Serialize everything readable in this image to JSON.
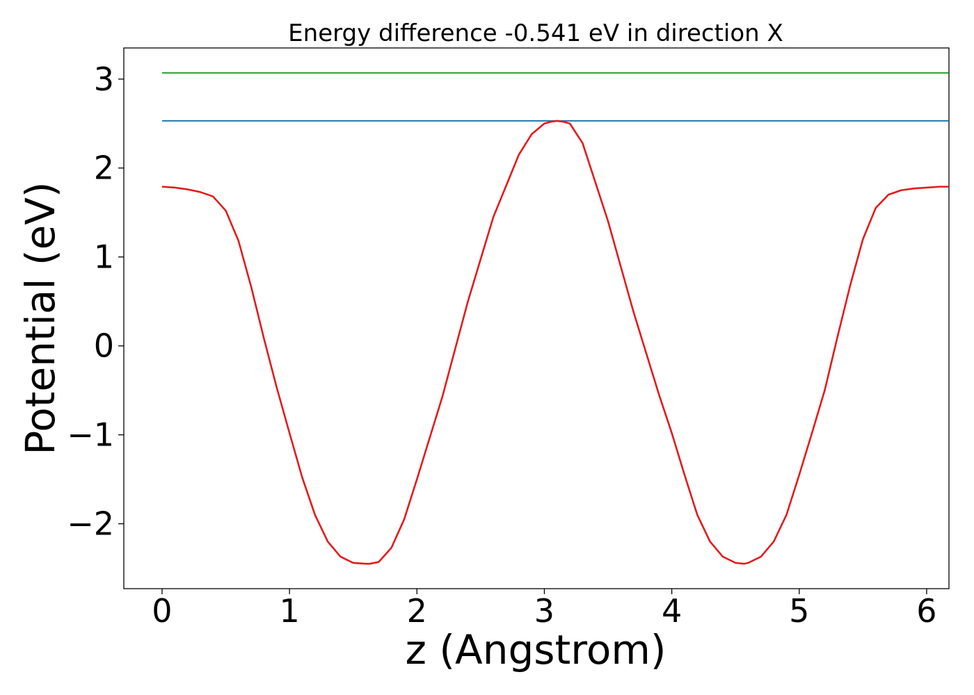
{
  "chart_data": {
    "type": "line",
    "title": "Energy difference -0.541 eV in direction X",
    "xlabel": "z (Angstrom)",
    "ylabel": "Potential (eV)",
    "xlim": [
      -0.3,
      6.175
    ],
    "ylim": [
      -2.73,
      3.35
    ],
    "xticks": [
      0,
      1,
      2,
      3,
      4,
      5,
      6
    ],
    "xtick_labels": [
      "0",
      "1",
      "2",
      "3",
      "4",
      "5",
      "6"
    ],
    "yticks": [
      -2,
      -1,
      0,
      1,
      2,
      3
    ],
    "ytick_labels": [
      "−2",
      "−1",
      "0",
      "1",
      "2",
      "3"
    ],
    "grid": false,
    "series": [
      {
        "color": "#2ca02c",
        "x": [
          0,
          6.17
        ],
        "y": [
          3.07,
          3.07
        ]
      },
      {
        "color": "#1f77b4",
        "x": [
          0,
          6.17
        ],
        "y": [
          2.53,
          2.53
        ]
      },
      {
        "color": "#e41a1c",
        "x": [
          0,
          0.1,
          0.2,
          0.3,
          0.4,
          0.5,
          0.6,
          0.7,
          0.8,
          0.9,
          1.0,
          1.1,
          1.2,
          1.3,
          1.4,
          1.5,
          1.6,
          1.63,
          1.7,
          1.8,
          1.9,
          2.0,
          2.2,
          2.4,
          2.6,
          2.8,
          2.9,
          3.0,
          3.05,
          3.1,
          3.15,
          3.2,
          3.3,
          3.5,
          3.7,
          3.9,
          4.0,
          4.1,
          4.2,
          4.3,
          4.4,
          4.5,
          4.57,
          4.6,
          4.7,
          4.8,
          4.9,
          5.0,
          5.1,
          5.2,
          5.3,
          5.4,
          5.5,
          5.6,
          5.7,
          5.8,
          5.9,
          6.0,
          6.1,
          6.17
        ],
        "y": [
          1.79,
          1.78,
          1.76,
          1.73,
          1.68,
          1.52,
          1.18,
          0.66,
          0.08,
          -0.47,
          -0.98,
          -1.48,
          -1.9,
          -2.2,
          -2.37,
          -2.44,
          -2.45,
          -2.45,
          -2.43,
          -2.27,
          -1.95,
          -1.5,
          -0.57,
          0.5,
          1.45,
          2.15,
          2.38,
          2.5,
          2.52,
          2.53,
          2.52,
          2.5,
          2.28,
          1.4,
          0.38,
          -0.55,
          -0.98,
          -1.45,
          -1.9,
          -2.2,
          -2.37,
          -2.44,
          -2.45,
          -2.44,
          -2.37,
          -2.2,
          -1.9,
          -1.45,
          -0.98,
          -0.5,
          0.1,
          0.68,
          1.2,
          1.55,
          1.7,
          1.75,
          1.77,
          1.78,
          1.79,
          1.79
        ]
      }
    ]
  }
}
